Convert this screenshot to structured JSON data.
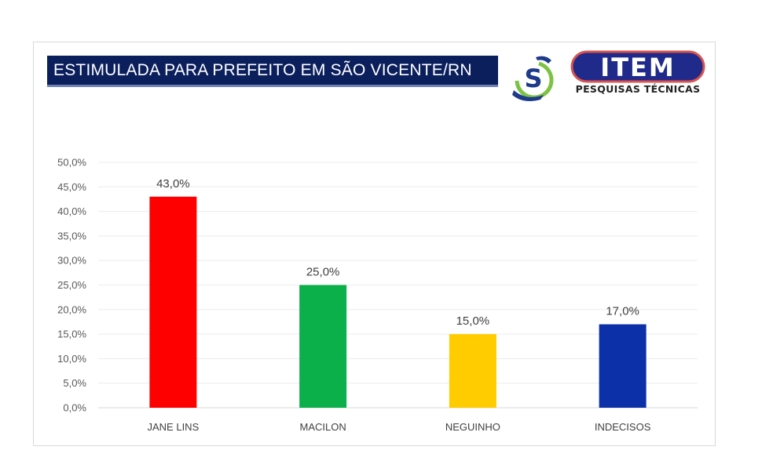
{
  "header": {
    "title": "ESTIMULADA PARA PREFEITO EM SÃO VICENTE/RN",
    "logo_item_text": "ITEM",
    "logo_item_subtitle": "PESQUISAS TÉCNICAS",
    "logo_s_letter": "S"
  },
  "colors": {
    "title_bg": "#0b1f5c",
    "logo_item_bg": "#1f2a8a",
    "logo_item_outline": "#d9534f",
    "logo_s_green": "#7cc243",
    "logo_s_blue": "#1e3a8a"
  },
  "chart_data": {
    "type": "bar",
    "categories": [
      "JANE LINS",
      "MACILON",
      "NEGUINHO",
      "INDECISOS"
    ],
    "values": [
      43.0,
      25.0,
      15.0,
      17.0
    ],
    "value_labels": [
      "43,0%",
      "25,0%",
      "15,0%",
      "17,0%"
    ],
    "colors": [
      "#ff0000",
      "#0bb04b",
      "#ffcc00",
      "#0b30a8"
    ],
    "yticks": [
      "0,0%",
      "5,0%",
      "10,0%",
      "15,0%",
      "20,0%",
      "25,0%",
      "30,0%",
      "35,0%",
      "40,0%",
      "45,0%",
      "50,0%"
    ],
    "ylim": [
      0,
      50
    ],
    "grid": true,
    "legend": false,
    "title": "ESTIMULADA PARA PREFEITO EM SÃO VICENTE/RN",
    "xlabel": "",
    "ylabel": ""
  }
}
